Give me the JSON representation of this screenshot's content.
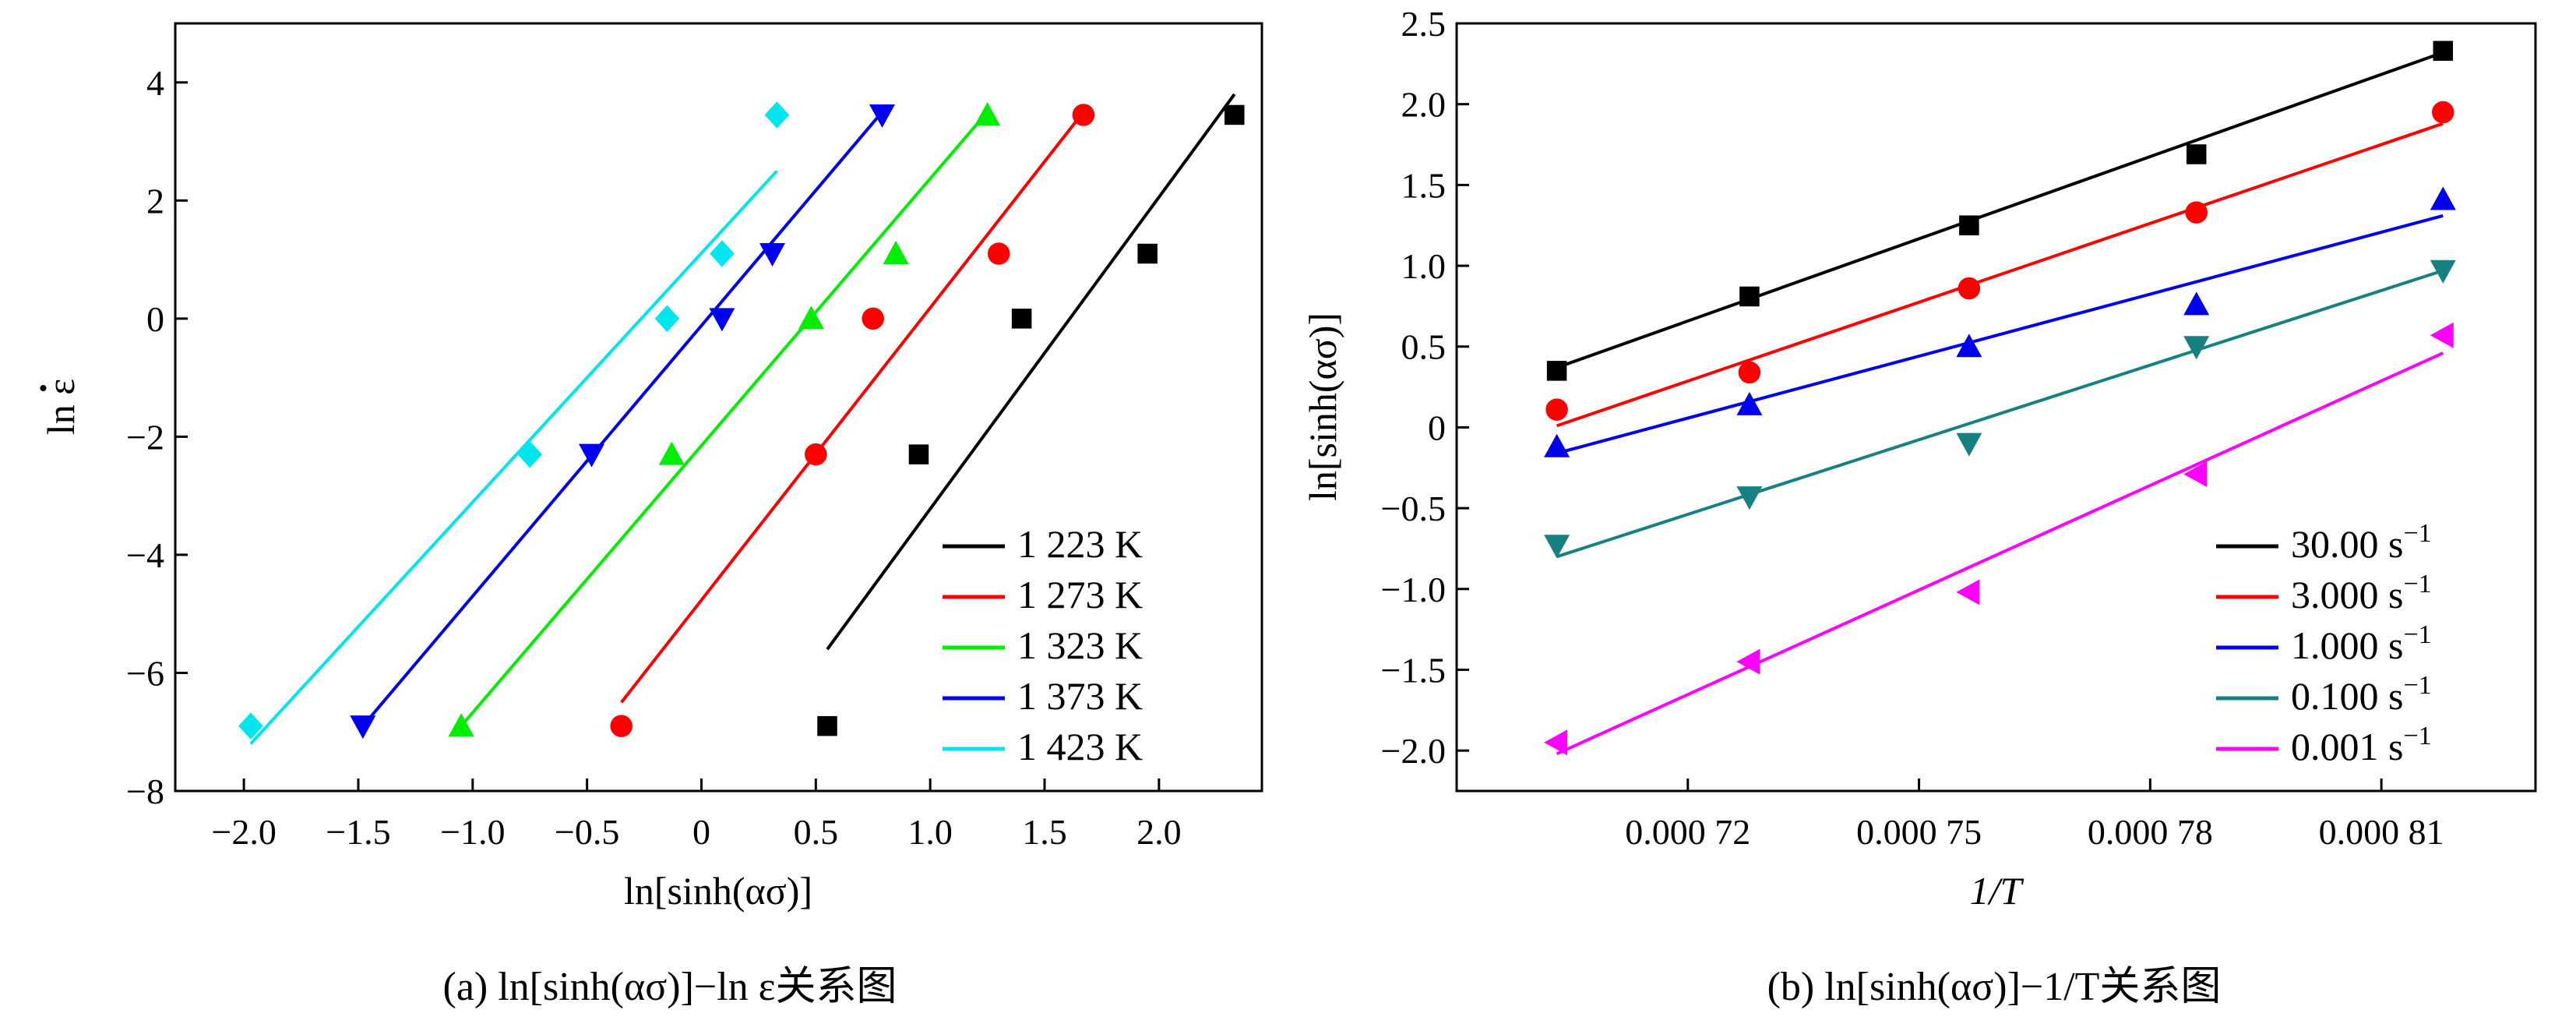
{
  "charts": [
    {
      "xlabel": "ln[sinh(ασ)]",
      "ylabel": "ln ε",
      "caption": "(a) ln[sinh(ασ)]−ln ε关系图"
    },
    {
      "xlabel": "1/T",
      "ylabel": "ln[sinh(ασ)]",
      "caption": "(b) ln[sinh(ασ)]−1/T关系图"
    }
  ],
  "chart_data": [
    {
      "type": "scatter",
      "xlim": [
        -2.3,
        2.45
      ],
      "ylim": [
        -8,
        5
      ],
      "xticks": [
        -2.0,
        -1.5,
        -1.0,
        -0.5,
        0,
        0.5,
        1.0,
        1.5,
        2.0
      ],
      "xtick_labels": [
        "−2.0",
        "−1.5",
        "−1.0",
        "−0.5",
        "0",
        "0.5",
        "1.0",
        "1.5",
        "2.0"
      ],
      "yticks": [
        -8,
        -6,
        -4,
        -2,
        0,
        2,
        4
      ],
      "ytick_labels": [
        "−8",
        "−6",
        "−4",
        "−2",
        "0",
        "2",
        "4"
      ],
      "legend_position": "bottom-right",
      "series": [
        {
          "name": "1 223 K",
          "color": "#000000",
          "marker": "square",
          "points": [
            [
              0.55,
              -6.9
            ],
            [
              0.95,
              -2.3
            ],
            [
              1.4,
              0.0
            ],
            [
              1.95,
              1.1
            ],
            [
              2.33,
              3.45
            ]
          ],
          "fit": [
            [
              0.55,
              -5.6
            ],
            [
              2.33,
              3.8
            ]
          ]
        },
        {
          "name": "1 273 K",
          "color": "#ff0000",
          "marker": "circle",
          "points": [
            [
              -0.35,
              -6.9
            ],
            [
              0.5,
              -2.3
            ],
            [
              0.75,
              0.0
            ],
            [
              1.3,
              1.1
            ],
            [
              1.67,
              3.45
            ]
          ],
          "fit": [
            [
              -0.35,
              -6.5
            ],
            [
              1.67,
              3.5
            ]
          ]
        },
        {
          "name": "1 323 K",
          "color": "#00ee00",
          "marker": "triangle-up",
          "points": [
            [
              -1.05,
              -6.9
            ],
            [
              -0.13,
              -2.3
            ],
            [
              0.48,
              0.0
            ],
            [
              0.85,
              1.1
            ],
            [
              1.25,
              3.45
            ]
          ],
          "fit": [
            [
              -1.05,
              -6.9
            ],
            [
              1.25,
              3.5
            ]
          ]
        },
        {
          "name": "1 373 K",
          "color": "#0000ee",
          "marker": "triangle-down",
          "points": [
            [
              -1.48,
              -6.9
            ],
            [
              -0.48,
              -2.3
            ],
            [
              0.09,
              0.0
            ],
            [
              0.31,
              1.1
            ],
            [
              0.79,
              3.45
            ]
          ],
          "fit": [
            [
              -1.48,
              -6.9
            ],
            [
              0.79,
              3.5
            ]
          ]
        },
        {
          "name": "1 423 K",
          "color": "#00e5ee",
          "marker": "diamond",
          "points": [
            [
              -1.97,
              -6.9
            ],
            [
              -0.75,
              -2.3
            ],
            [
              -0.15,
              0.0
            ],
            [
              0.09,
              1.1
            ],
            [
              0.33,
              3.45
            ]
          ],
          "fit": [
            [
              -1.97,
              -7.2
            ],
            [
              0.33,
              2.5
            ]
          ]
        }
      ]
    },
    {
      "type": "scatter",
      "xlim": [
        0.00069,
        0.00083
      ],
      "ylim": [
        -2.25,
        2.5
      ],
      "xticks": [
        0.00072,
        0.00075,
        0.00078,
        0.00081
      ],
      "xtick_labels": [
        "0.000 72",
        "0.000 75",
        "0.000 78",
        "0.000 81"
      ],
      "yticks": [
        -2.0,
        -1.5,
        -1.0,
        -0.5,
        0,
        0.5,
        1.0,
        1.5,
        2.0,
        2.5
      ],
      "ytick_labels": [
        "−2.0",
        "−1.5",
        "−1.0",
        "−0.5",
        "0",
        "0.5",
        "1.0",
        "1.5",
        "2.0",
        "2.5"
      ],
      "legend_position": "bottom-right",
      "series": [
        {
          "name": "30.00 s",
          "unit_sup": "−1",
          "color": "#000000",
          "marker": "square",
          "points": [
            [
              0.000703,
              0.35
            ],
            [
              0.000728,
              0.81
            ],
            [
              0.0007565,
              1.25
            ],
            [
              0.000786,
              1.69
            ],
            [
              0.000818,
              2.33
            ]
          ],
          "fit": [
            [
              0.000703,
              0.37
            ],
            [
              0.000818,
              2.32
            ]
          ]
        },
        {
          "name": "3.000 s",
          "unit_sup": "−1",
          "color": "#ff0000",
          "marker": "circle",
          "points": [
            [
              0.000703,
              0.11
            ],
            [
              0.000728,
              0.34
            ],
            [
              0.0007565,
              0.86
            ],
            [
              0.000786,
              1.33
            ],
            [
              0.000818,
              1.95
            ]
          ],
          "fit": [
            [
              0.000703,
              0.01
            ],
            [
              0.000818,
              1.88
            ]
          ]
        },
        {
          "name": "1.000 s",
          "unit_sup": "−1",
          "color": "#0000ee",
          "marker": "triangle-up",
          "points": [
            [
              0.000703,
              -0.12
            ],
            [
              0.000728,
              0.14
            ],
            [
              0.0007565,
              0.5
            ],
            [
              0.000786,
              0.76
            ],
            [
              0.000818,
              1.41
            ]
          ],
          "fit": [
            [
              0.000703,
              -0.16
            ],
            [
              0.000818,
              1.31
            ]
          ]
        },
        {
          "name": "0.100 s",
          "unit_sup": "−1",
          "color": "#178080",
          "marker": "triangle-down",
          "points": [
            [
              0.000703,
              -0.73
            ],
            [
              0.000728,
              -0.43
            ],
            [
              0.0007565,
              -0.1
            ],
            [
              0.000786,
              0.5
            ],
            [
              0.000818,
              0.97
            ]
          ],
          "fit": [
            [
              0.000703,
              -0.8
            ],
            [
              0.000818,
              0.97
            ]
          ]
        },
        {
          "name": "0.001 s",
          "unit_sup": "−1",
          "color": "#ff00ff",
          "marker": "triangle-left",
          "points": [
            [
              0.000703,
              -1.95
            ],
            [
              0.000728,
              -1.45
            ],
            [
              0.0007565,
              -1.02
            ],
            [
              0.000786,
              -0.29
            ],
            [
              0.000818,
              0.57
            ]
          ],
          "fit": [
            [
              0.000703,
              -2.02
            ],
            [
              0.000818,
              0.46
            ]
          ]
        }
      ]
    }
  ]
}
